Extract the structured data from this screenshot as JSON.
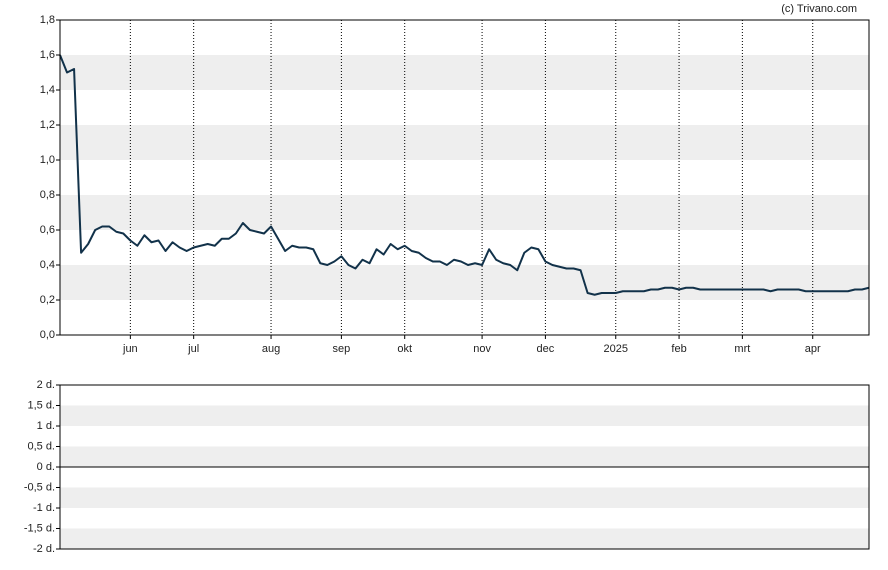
{
  "chart_data": [
    {
      "type": "line",
      "source": "(c) Trivano.com",
      "categories": [
        null,
        null,
        null,
        null,
        null,
        null,
        null,
        null,
        null,
        null,
        "jun",
        null,
        null,
        null,
        null,
        null,
        null,
        null,
        null,
        "jul",
        null,
        null,
        null,
        null,
        null,
        null,
        null,
        null,
        null,
        null,
        "aug",
        null,
        null,
        null,
        null,
        null,
        null,
        null,
        null,
        null,
        "sep",
        null,
        null,
        null,
        null,
        null,
        null,
        null,
        null,
        "okt",
        null,
        null,
        null,
        null,
        null,
        null,
        null,
        null,
        null,
        null,
        "nov",
        null,
        null,
        null,
        null,
        null,
        null,
        null,
        null,
        "dec",
        null,
        null,
        null,
        null,
        null,
        null,
        null,
        null,
        null,
        "2025",
        null,
        null,
        null,
        null,
        null,
        null,
        null,
        null,
        "feb",
        null,
        null,
        null,
        null,
        null,
        null,
        null,
        null,
        "mrt",
        null,
        null,
        null,
        null,
        null,
        null,
        null,
        null,
        null,
        "apr",
        null,
        null,
        null,
        null,
        null,
        null,
        null,
        null
      ],
      "series": [
        {
          "color": "#12324a",
          "values": [
            1.6,
            1.5,
            1.52,
            0.47,
            0.52,
            0.6,
            0.62,
            0.62,
            0.59,
            0.58,
            0.54,
            0.51,
            0.57,
            0.53,
            0.54,
            0.48,
            0.53,
            0.5,
            0.48,
            0.5,
            0.51,
            0.52,
            0.51,
            0.55,
            0.55,
            0.58,
            0.64,
            0.6,
            0.59,
            0.58,
            0.62,
            0.55,
            0.48,
            0.51,
            0.5,
            0.5,
            0.49,
            0.41,
            0.4,
            0.42,
            0.45,
            0.4,
            0.38,
            0.43,
            0.41,
            0.49,
            0.46,
            0.52,
            0.49,
            0.51,
            0.48,
            0.47,
            0.44,
            0.42,
            0.42,
            0.4,
            0.43,
            0.42,
            0.4,
            0.41,
            0.4,
            0.49,
            0.43,
            0.41,
            0.4,
            0.37,
            0.47,
            0.5,
            0.49,
            0.42,
            0.4,
            0.39,
            0.38,
            0.38,
            0.37,
            0.24,
            0.23,
            0.24,
            0.24,
            0.24,
            0.25,
            0.25,
            0.25,
            0.25,
            0.26,
            0.26,
            0.27,
            0.27,
            0.26,
            0.27,
            0.27,
            0.26,
            0.26,
            0.26,
            0.26,
            0.26,
            0.26,
            0.26,
            0.26,
            0.26,
            0.26,
            0.25,
            0.26,
            0.26,
            0.26,
            0.26,
            0.25,
            0.25,
            0.25,
            0.25,
            0.25,
            0.25,
            0.25,
            0.26,
            0.26,
            0.27
          ]
        }
      ],
      "ylim": [
        0,
        1.8
      ],
      "yticks": [
        {
          "value": 0,
          "label": "0,0"
        },
        {
          "value": 0.2,
          "label": "0,2"
        },
        {
          "value": 0.4,
          "label": "0,4"
        },
        {
          "value": 0.6,
          "label": "0,6"
        },
        {
          "value": 0.8,
          "label": "0,8"
        },
        {
          "value": 1.0,
          "label": "1,0"
        },
        {
          "value": 1.2,
          "label": "1,2"
        },
        {
          "value": 1.4,
          "label": "1,4"
        },
        {
          "value": 1.6,
          "label": "1,6"
        },
        {
          "value": 1.8,
          "label": "1,8"
        }
      ],
      "band_color": "#eeeeee",
      "grid": true
    },
    {
      "type": "line",
      "ylim": [
        -2,
        2
      ],
      "yticks": [
        {
          "value": -2,
          "label": "-2 d."
        },
        {
          "value": -1.5,
          "label": "-1,5 d."
        },
        {
          "value": -1,
          "label": "-1 d."
        },
        {
          "value": -0.5,
          "label": "-0,5 d."
        },
        {
          "value": 0,
          "label": "0 d."
        },
        {
          "value": 0.5,
          "label": "0,5 d."
        },
        {
          "value": 1,
          "label": "1 d."
        },
        {
          "value": 1.5,
          "label": "1,5 d."
        },
        {
          "value": 2,
          "label": "2 d."
        }
      ],
      "band_color": "#eeeeee",
      "zero_line": true
    }
  ]
}
